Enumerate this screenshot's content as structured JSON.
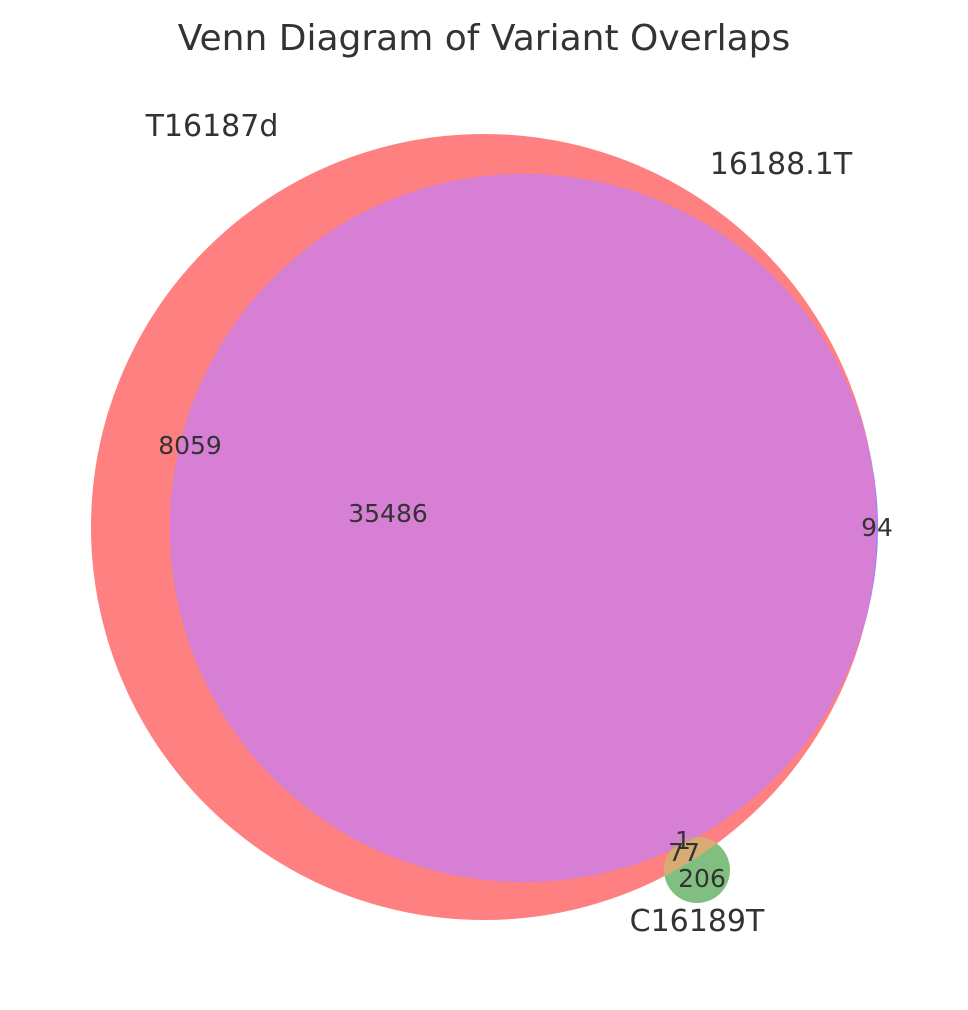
{
  "title": "Venn Diagram of Variant Overlaps",
  "sets": [
    {
      "name": "T16187d",
      "color": "#ff0000"
    },
    {
      "name": "16188.1T",
      "color": "#0000ff"
    },
    {
      "name": "C16189T",
      "color": "#008000"
    }
  ],
  "regions": {
    "only_T16187d": "8059",
    "T16187d_and_16188.1T": "35486",
    "only_16188.1T": "94",
    "all_three": "1",
    "T16187d_and_C16189T": "77",
    "only_C16189T": "206"
  },
  "colors": {
    "T16187d_fill": "#ff8080",
    "intersection_fill": "#d77fd5",
    "16188.1T_fill": "#8080ff",
    "C16189T_fill": "#80bf80",
    "T16187d_C16189T_fill": "#d8ab75"
  }
}
